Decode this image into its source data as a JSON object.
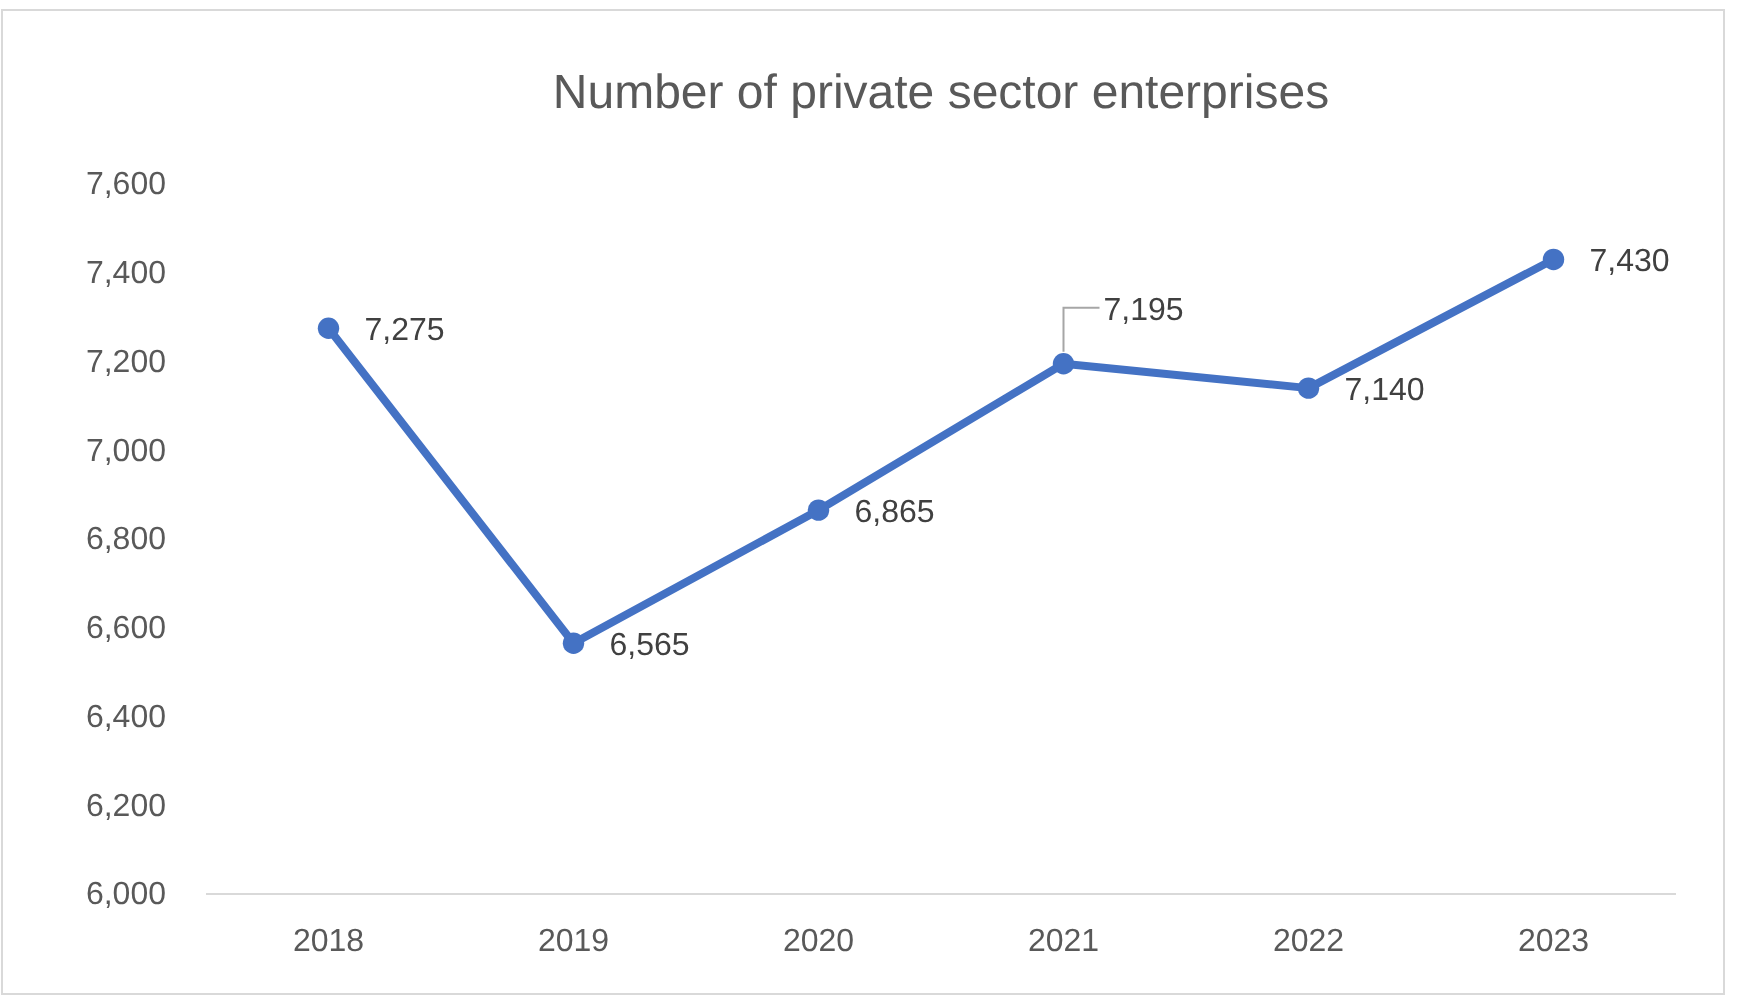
{
  "chart_data": {
    "type": "line",
    "title": "Number of private sector enterprises",
    "categories": [
      "2018",
      "2019",
      "2020",
      "2021",
      "2022",
      "2023"
    ],
    "series": [
      {
        "color": "#4472c4",
        "values": [
          7275,
          6565,
          6865,
          7195,
          7140,
          7430
        ],
        "value_labels": [
          "7,275",
          "6,565",
          "6,865",
          "7,195",
          "7,140",
          "7,430"
        ]
      }
    ],
    "ylim": [
      6000,
      7600
    ],
    "yticks": [
      {
        "value": 6000,
        "label": "6,000"
      },
      {
        "value": 6200,
        "label": "6,200"
      },
      {
        "value": 6400,
        "label": "6,400"
      },
      {
        "value": 6600,
        "label": "6,600"
      },
      {
        "value": 6800,
        "label": "6,800"
      },
      {
        "value": 7000,
        "label": "7,000"
      },
      {
        "value": 7200,
        "label": "7,200"
      },
      {
        "value": 7400,
        "label": "7,400"
      },
      {
        "value": 7600,
        "label": "7,600"
      }
    ],
    "grid": false,
    "marker": "circle",
    "line_style": "solid"
  }
}
